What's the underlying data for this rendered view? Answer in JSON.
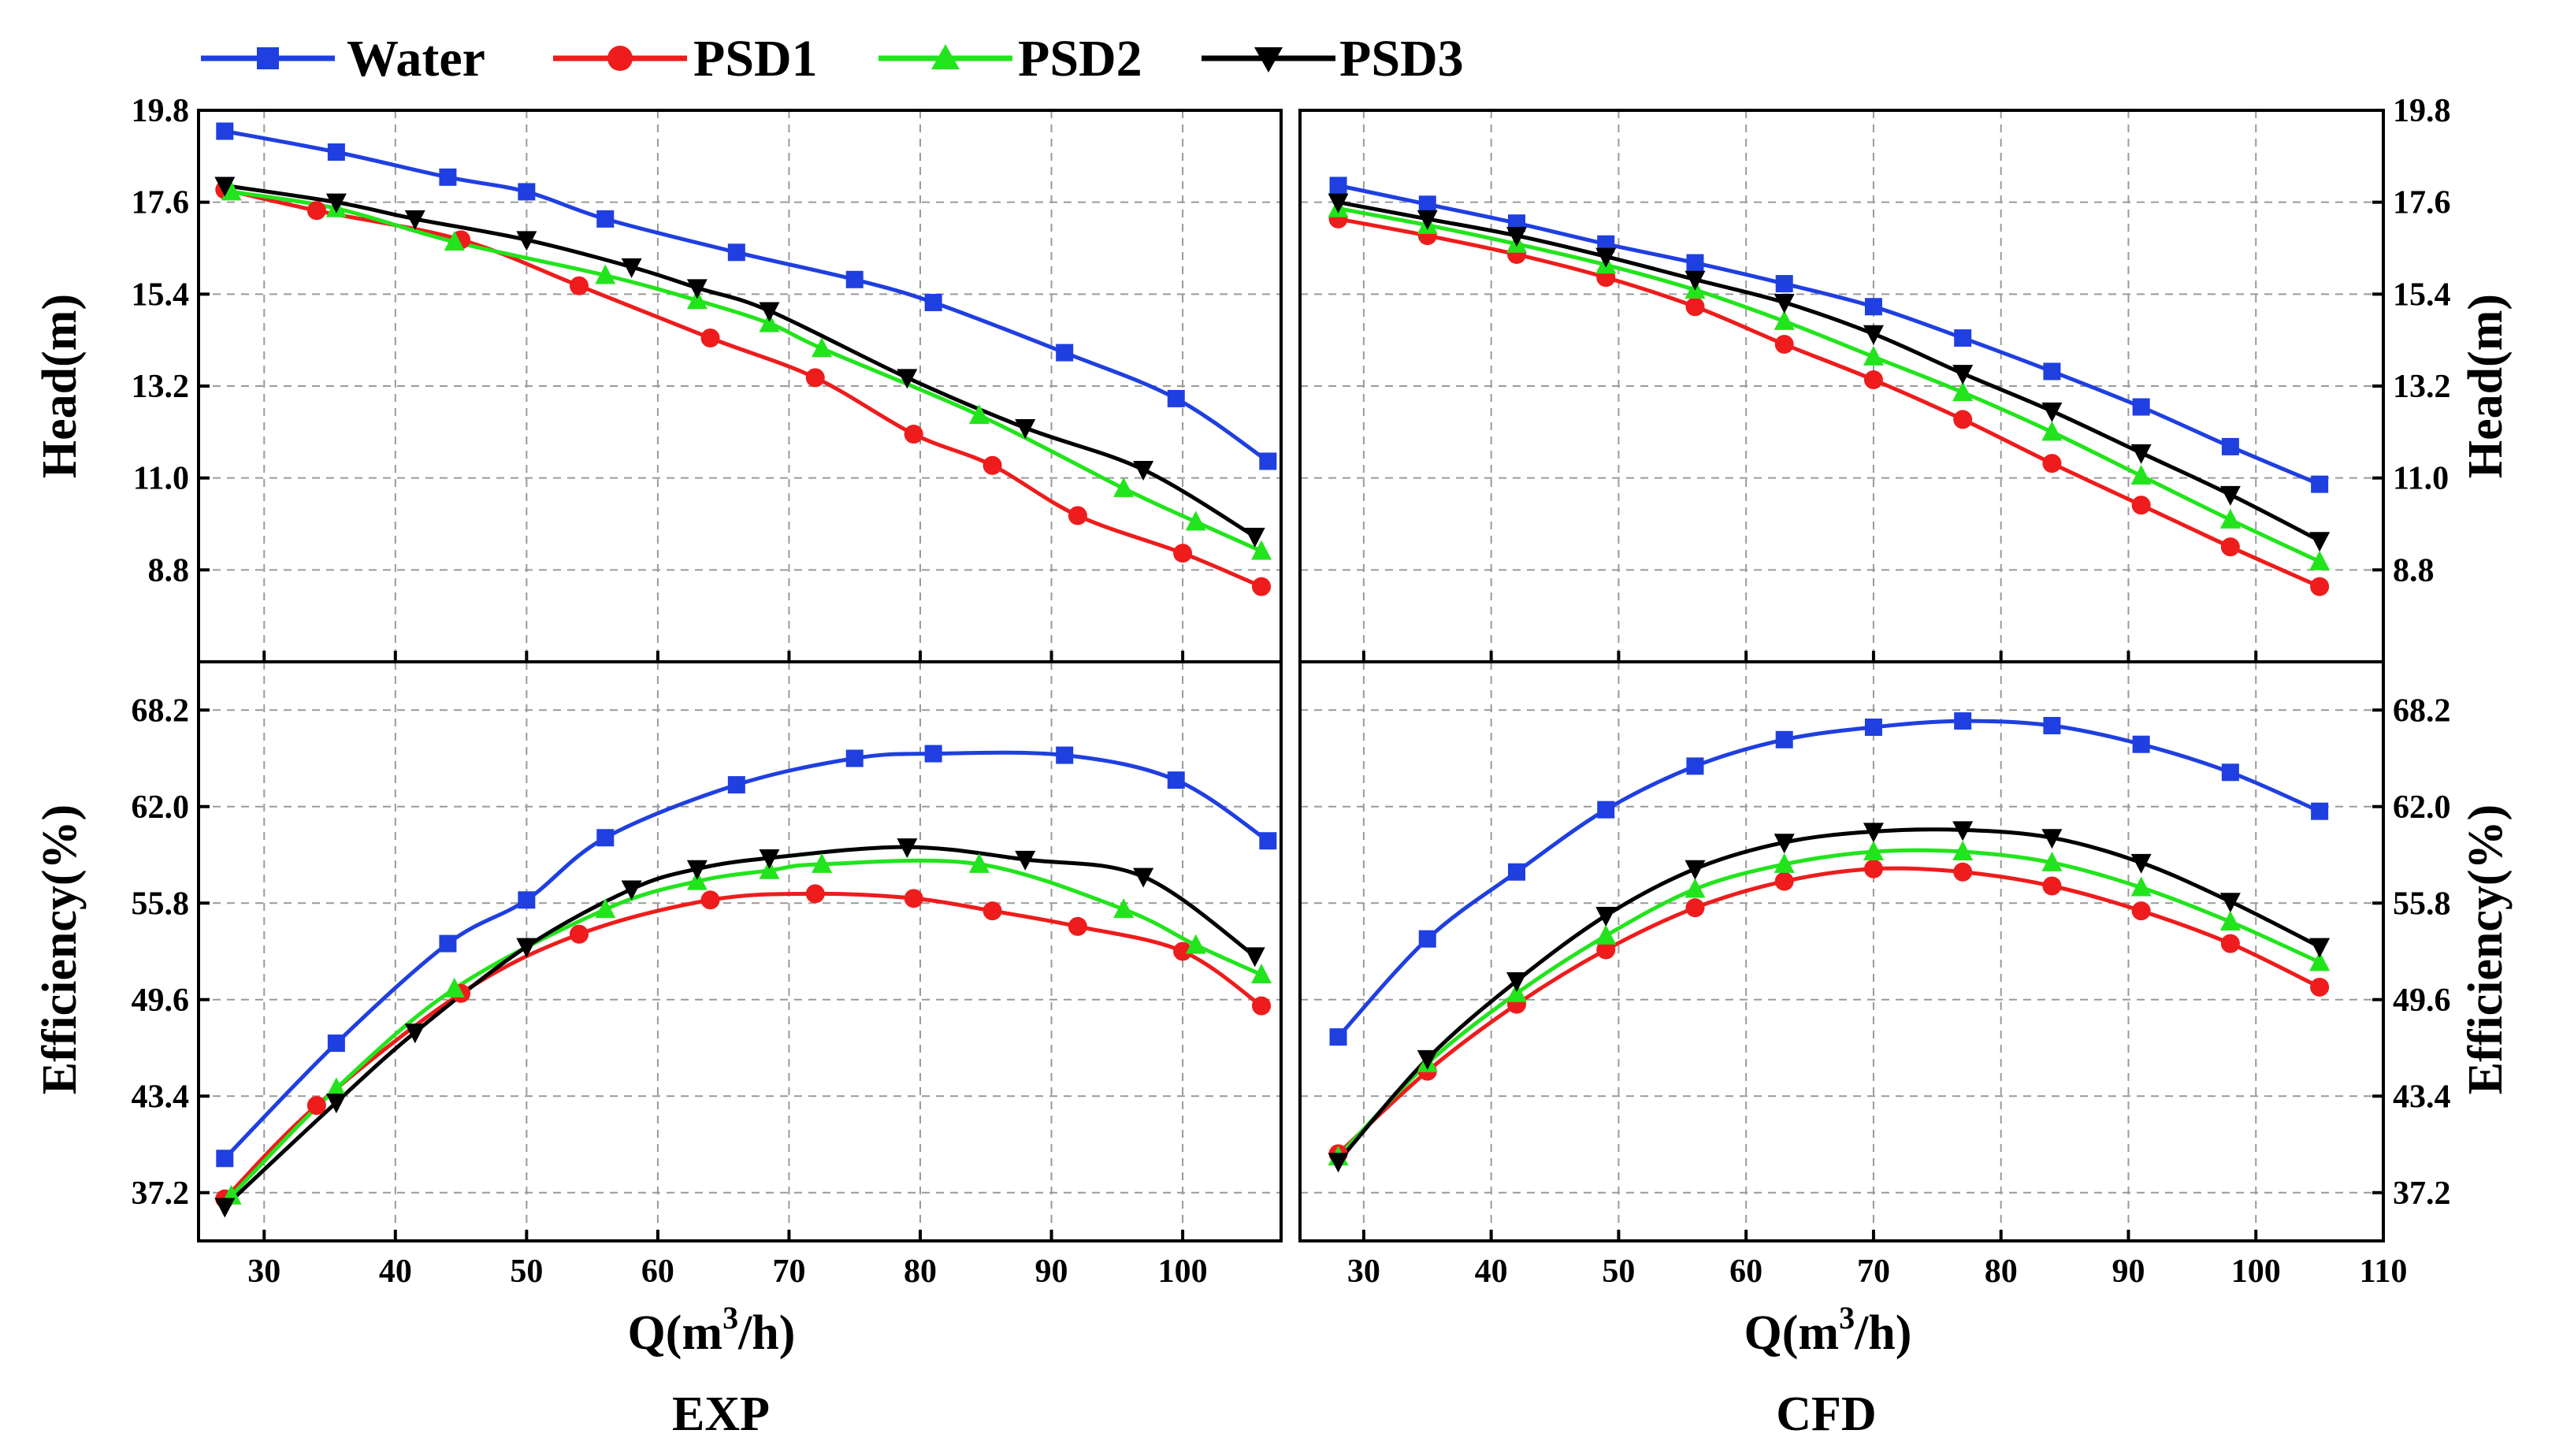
{
  "legend": [
    {
      "name": "Water",
      "color": "#1f3fe0",
      "marker": "square"
    },
    {
      "name": "PSD1",
      "color": "#ee1c1c",
      "marker": "circle"
    },
    {
      "name": "PSD2",
      "color": "#22e41c",
      "marker": "triangle-up"
    },
    {
      "name": "PSD3",
      "color": "#000000",
      "marker": "triangle-down"
    }
  ],
  "panel_titles": {
    "exp": "EXP",
    "cfd": "CFD"
  },
  "xlabel": {
    "prefix": "Q(m",
    "sup": "3",
    "suffix": "/h)"
  },
  "chart_data": [
    {
      "type": "line",
      "panel": "EXP - Head",
      "ylabel": "Head(m)",
      "xlim": [
        25,
        107.5
      ],
      "ylim": [
        6.6,
        19.8
      ],
      "yticks": [
        "8.8",
        "11.0",
        "13.2",
        "15.4",
        "17.6",
        "19.8"
      ],
      "xticks": [
        "30",
        "40",
        "50",
        "60",
        "70",
        "80",
        "90",
        "100"
      ],
      "series": [
        {
          "name": "Water",
          "x": [
            27,
            35.5,
            44,
            50,
            56,
            66,
            75,
            81,
            91,
            99.5,
            106.5
          ],
          "y": [
            19.3,
            18.8,
            18.2,
            17.85,
            17.2,
            16.4,
            15.75,
            15.2,
            14.0,
            12.9,
            11.4
          ]
        },
        {
          "name": "PSD1",
          "x": [
            27,
            34,
            45,
            54,
            64,
            72,
            79.5,
            85.5,
            92,
            100,
            106
          ],
          "y": [
            17.9,
            17.4,
            16.7,
            15.6,
            14.35,
            13.4,
            12.05,
            11.3,
            10.1,
            9.2,
            8.4
          ]
        },
        {
          "name": "PSD2",
          "x": [
            27.5,
            35.5,
            44.5,
            56,
            63,
            68.5,
            72.5,
            84.5,
            95.5,
            101,
            106
          ],
          "y": [
            17.85,
            17.45,
            16.65,
            15.85,
            15.25,
            14.7,
            14.1,
            12.5,
            10.75,
            9.95,
            9.25
          ]
        },
        {
          "name": "PSD3",
          "x": [
            27,
            35.5,
            41.5,
            50,
            58,
            63,
            68.5,
            79,
            88,
            97,
            105.5
          ],
          "y": [
            18.0,
            17.6,
            17.2,
            16.7,
            16.05,
            15.55,
            15.0,
            13.4,
            12.2,
            11.2,
            9.6
          ]
        }
      ]
    },
    {
      "type": "line",
      "panel": "EXP - Efficiency",
      "ylabel": "Efficiency(%)",
      "xlim": [
        25,
        107.5
      ],
      "ylim": [
        34.1,
        71.3
      ],
      "yticks": [
        "37.2",
        "43.4",
        "49.6",
        "55.8",
        "62.0",
        "68.2"
      ],
      "xticks": [
        "30",
        "40",
        "50",
        "60",
        "70",
        "80",
        "90",
        "100"
      ],
      "series": [
        {
          "name": "Water",
          "x": [
            27,
            35.5,
            44,
            50,
            56,
            66,
            75,
            81,
            91,
            99.5,
            106.5
          ],
          "y": [
            39.4,
            46.8,
            53.2,
            56.0,
            60.0,
            63.4,
            65.1,
            65.4,
            65.3,
            63.7,
            59.8
          ]
        },
        {
          "name": "PSD1",
          "x": [
            27,
            34,
            45,
            54,
            64,
            72,
            79.5,
            85.5,
            92,
            100,
            106
          ],
          "y": [
            36.8,
            42.8,
            50.0,
            53.8,
            56.0,
            56.4,
            56.1,
            55.3,
            54.3,
            52.7,
            49.2
          ]
        },
        {
          "name": "PSD2",
          "x": [
            27.5,
            35.5,
            44.5,
            56,
            63,
            68.5,
            72.5,
            84.5,
            95.5,
            101,
            106
          ],
          "y": [
            37.0,
            43.9,
            50.3,
            55.4,
            57.2,
            57.9,
            58.3,
            58.3,
            55.4,
            53.1,
            51.2
          ]
        },
        {
          "name": "PSD3",
          "x": [
            27,
            35.5,
            41.5,
            50,
            58,
            63,
            68.5,
            79,
            88,
            97,
            105.5
          ],
          "y": [
            36.3,
            43.0,
            47.5,
            53.0,
            56.7,
            58.0,
            58.7,
            59.4,
            58.6,
            57.5,
            52.4
          ]
        }
      ]
    },
    {
      "type": "line",
      "panel": "CFD - Head",
      "ylabel": "Head(m)",
      "xlim": [
        25,
        110
      ],
      "ylim": [
        6.6,
        19.8
      ],
      "yticks": [
        "8.8",
        "11.0",
        "13.2",
        "15.4",
        "17.6",
        "19.8"
      ],
      "xticks": [
        "30",
        "40",
        "50",
        "60",
        "70",
        "80",
        "90",
        "100",
        "110"
      ],
      "series": [
        {
          "name": "Water",
          "x": [
            28,
            35,
            42,
            49,
            56,
            63,
            70,
            77,
            84,
            91,
            98,
            105
          ],
          "y": [
            18.0,
            17.55,
            17.1,
            16.6,
            16.15,
            15.65,
            15.1,
            14.35,
            13.55,
            12.7,
            11.75,
            10.85
          ]
        },
        {
          "name": "PSD1",
          "x": [
            28,
            35,
            42,
            49,
            56,
            63,
            70,
            77,
            84,
            91,
            98,
            105
          ],
          "y": [
            17.2,
            16.8,
            16.35,
            15.8,
            15.1,
            14.2,
            13.35,
            12.4,
            11.35,
            10.35,
            9.35,
            8.4
          ]
        },
        {
          "name": "PSD2",
          "x": [
            28,
            35,
            42,
            49,
            56,
            63,
            70,
            77,
            84,
            91,
            98,
            105
          ],
          "y": [
            17.45,
            17.05,
            16.6,
            16.1,
            15.5,
            14.75,
            13.9,
            13.05,
            12.1,
            11.05,
            10.0,
            9.0
          ]
        },
        {
          "name": "PSD3",
          "x": [
            28,
            35,
            42,
            49,
            56,
            63,
            70,
            77,
            84,
            91,
            98,
            105
          ],
          "y": [
            17.6,
            17.2,
            16.8,
            16.3,
            15.75,
            15.2,
            14.45,
            13.5,
            12.6,
            11.6,
            10.6,
            9.5
          ]
        }
      ]
    },
    {
      "type": "line",
      "panel": "CFD - Efficiency",
      "ylabel": "Efficiency(%)",
      "xlim": [
        25,
        110
      ],
      "ylim": [
        34.1,
        71.3
      ],
      "yticks": [
        "37.2",
        "43.4",
        "49.6",
        "55.8",
        "62.0",
        "68.2"
      ],
      "xticks": [
        "30",
        "40",
        "50",
        "60",
        "70",
        "80",
        "90",
        "100",
        "110"
      ],
      "series": [
        {
          "name": "Water",
          "x": [
            28,
            35,
            42,
            49,
            56,
            63,
            70,
            77,
            84,
            91,
            98,
            105
          ],
          "y": [
            47.2,
            53.5,
            57.8,
            61.8,
            64.6,
            66.3,
            67.1,
            67.5,
            67.2,
            66.0,
            64.2,
            61.7
          ]
        },
        {
          "name": "PSD1",
          "x": [
            28,
            35,
            42,
            49,
            56,
            63,
            70,
            77,
            84,
            91,
            98,
            105
          ],
          "y": [
            39.7,
            45.0,
            49.3,
            52.8,
            55.5,
            57.2,
            58.0,
            57.8,
            56.9,
            55.3,
            53.2,
            50.4
          ]
        },
        {
          "name": "PSD2",
          "x": [
            28,
            35,
            42,
            49,
            56,
            63,
            70,
            77,
            84,
            91,
            98,
            105
          ],
          "y": [
            39.5,
            45.5,
            50.0,
            53.7,
            56.7,
            58.3,
            59.1,
            59.1,
            58.4,
            56.8,
            54.6,
            52.0
          ]
        },
        {
          "name": "PSD3",
          "x": [
            28,
            35,
            42,
            49,
            56,
            63,
            70,
            77,
            84,
            91,
            98,
            105
          ],
          "y": [
            39.2,
            45.8,
            50.8,
            55.0,
            58.0,
            59.7,
            60.4,
            60.5,
            60.0,
            58.4,
            55.9,
            53.0
          ]
        }
      ]
    }
  ]
}
